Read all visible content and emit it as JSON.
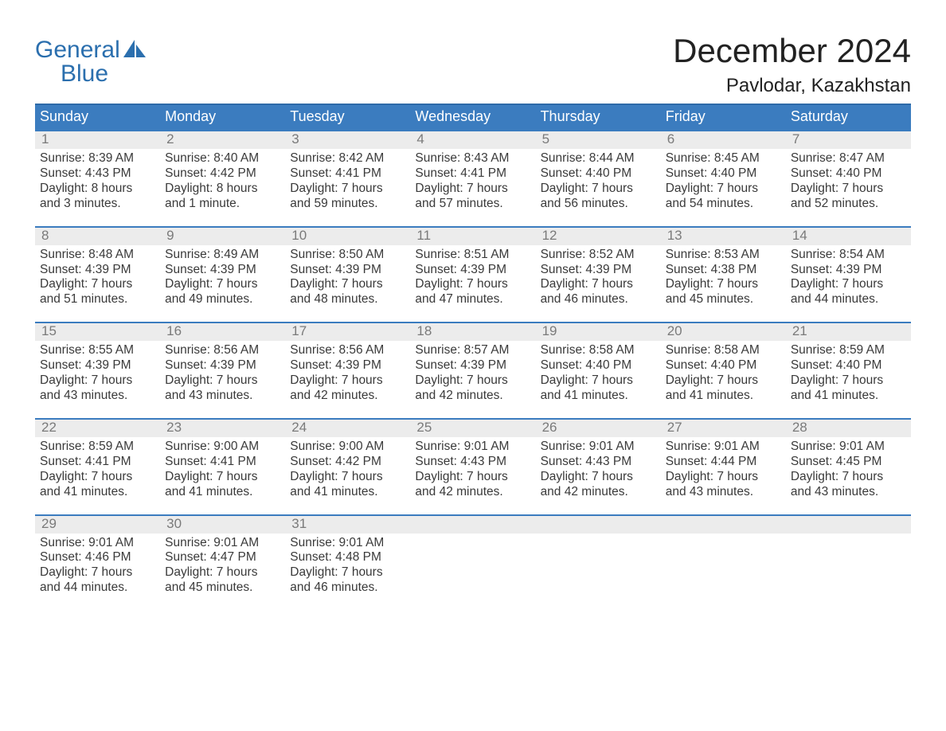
{
  "brand": {
    "line1": "General",
    "line2": "Blue"
  },
  "title": "December 2024",
  "location": "Pavlodar, Kazakhstan",
  "colors": {
    "header_bg": "#3b7cbf",
    "header_border": "#2e6aa8",
    "daynum_bg": "#ececec",
    "daynum_color": "#7a7a7a",
    "text": "#3a3a3a",
    "brand": "#2b6fae",
    "page_bg": "#ffffff"
  },
  "day_headers": [
    "Sunday",
    "Monday",
    "Tuesday",
    "Wednesday",
    "Thursday",
    "Friday",
    "Saturday"
  ],
  "weeks": [
    [
      {
        "n": "1",
        "sunrise": "8:39 AM",
        "sunset": "4:43 PM",
        "daylight": "8 hours and 3 minutes."
      },
      {
        "n": "2",
        "sunrise": "8:40 AM",
        "sunset": "4:42 PM",
        "daylight": "8 hours and 1 minute."
      },
      {
        "n": "3",
        "sunrise": "8:42 AM",
        "sunset": "4:41 PM",
        "daylight": "7 hours and 59 minutes."
      },
      {
        "n": "4",
        "sunrise": "8:43 AM",
        "sunset": "4:41 PM",
        "daylight": "7 hours and 57 minutes."
      },
      {
        "n": "5",
        "sunrise": "8:44 AM",
        "sunset": "4:40 PM",
        "daylight": "7 hours and 56 minutes."
      },
      {
        "n": "6",
        "sunrise": "8:45 AM",
        "sunset": "4:40 PM",
        "daylight": "7 hours and 54 minutes."
      },
      {
        "n": "7",
        "sunrise": "8:47 AM",
        "sunset": "4:40 PM",
        "daylight": "7 hours and 52 minutes."
      }
    ],
    [
      {
        "n": "8",
        "sunrise": "8:48 AM",
        "sunset": "4:39 PM",
        "daylight": "7 hours and 51 minutes."
      },
      {
        "n": "9",
        "sunrise": "8:49 AM",
        "sunset": "4:39 PM",
        "daylight": "7 hours and 49 minutes."
      },
      {
        "n": "10",
        "sunrise": "8:50 AM",
        "sunset": "4:39 PM",
        "daylight": "7 hours and 48 minutes."
      },
      {
        "n": "11",
        "sunrise": "8:51 AM",
        "sunset": "4:39 PM",
        "daylight": "7 hours and 47 minutes."
      },
      {
        "n": "12",
        "sunrise": "8:52 AM",
        "sunset": "4:39 PM",
        "daylight": "7 hours and 46 minutes."
      },
      {
        "n": "13",
        "sunrise": "8:53 AM",
        "sunset": "4:38 PM",
        "daylight": "7 hours and 45 minutes."
      },
      {
        "n": "14",
        "sunrise": "8:54 AM",
        "sunset": "4:39 PM",
        "daylight": "7 hours and 44 minutes."
      }
    ],
    [
      {
        "n": "15",
        "sunrise": "8:55 AM",
        "sunset": "4:39 PM",
        "daylight": "7 hours and 43 minutes."
      },
      {
        "n": "16",
        "sunrise": "8:56 AM",
        "sunset": "4:39 PM",
        "daylight": "7 hours and 43 minutes."
      },
      {
        "n": "17",
        "sunrise": "8:56 AM",
        "sunset": "4:39 PM",
        "daylight": "7 hours and 42 minutes."
      },
      {
        "n": "18",
        "sunrise": "8:57 AM",
        "sunset": "4:39 PM",
        "daylight": "7 hours and 42 minutes."
      },
      {
        "n": "19",
        "sunrise": "8:58 AM",
        "sunset": "4:40 PM",
        "daylight": "7 hours and 41 minutes."
      },
      {
        "n": "20",
        "sunrise": "8:58 AM",
        "sunset": "4:40 PM",
        "daylight": "7 hours and 41 minutes."
      },
      {
        "n": "21",
        "sunrise": "8:59 AM",
        "sunset": "4:40 PM",
        "daylight": "7 hours and 41 minutes."
      }
    ],
    [
      {
        "n": "22",
        "sunrise": "8:59 AM",
        "sunset": "4:41 PM",
        "daylight": "7 hours and 41 minutes."
      },
      {
        "n": "23",
        "sunrise": "9:00 AM",
        "sunset": "4:41 PM",
        "daylight": "7 hours and 41 minutes."
      },
      {
        "n": "24",
        "sunrise": "9:00 AM",
        "sunset": "4:42 PM",
        "daylight": "7 hours and 41 minutes."
      },
      {
        "n": "25",
        "sunrise": "9:01 AM",
        "sunset": "4:43 PM",
        "daylight": "7 hours and 42 minutes."
      },
      {
        "n": "26",
        "sunrise": "9:01 AM",
        "sunset": "4:43 PM",
        "daylight": "7 hours and 42 minutes."
      },
      {
        "n": "27",
        "sunrise": "9:01 AM",
        "sunset": "4:44 PM",
        "daylight": "7 hours and 43 minutes."
      },
      {
        "n": "28",
        "sunrise": "9:01 AM",
        "sunset": "4:45 PM",
        "daylight": "7 hours and 43 minutes."
      }
    ],
    [
      {
        "n": "29",
        "sunrise": "9:01 AM",
        "sunset": "4:46 PM",
        "daylight": "7 hours and 44 minutes."
      },
      {
        "n": "30",
        "sunrise": "9:01 AM",
        "sunset": "4:47 PM",
        "daylight": "7 hours and 45 minutes."
      },
      {
        "n": "31",
        "sunrise": "9:01 AM",
        "sunset": "4:48 PM",
        "daylight": "7 hours and 46 minutes."
      },
      null,
      null,
      null,
      null
    ]
  ],
  "labels": {
    "sunrise_prefix": "Sunrise: ",
    "sunset_prefix": "Sunset: ",
    "daylight_prefix": "Daylight: "
  }
}
